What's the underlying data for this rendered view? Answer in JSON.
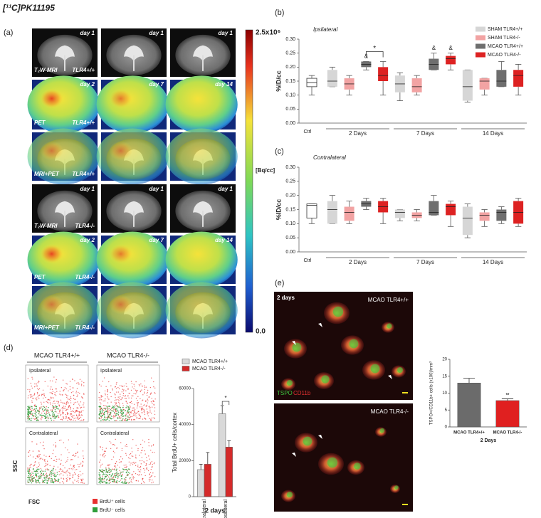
{
  "figure": {
    "title": "[¹¹C]PK11195",
    "panel_labels": [
      "(a)",
      "(b)",
      "(c)",
      "(d)",
      "(e)"
    ],
    "imaging": {
      "rows": [
        {
          "modality": "T₂W-MRI",
          "genotype": "TLR4+/+",
          "days": [
            "day 1",
            "day 1",
            "day 1"
          ]
        },
        {
          "modality": "PET",
          "genotype": "TLR4+/+",
          "days": [
            "day 2",
            "day 7",
            "day 14"
          ]
        },
        {
          "modality": "MRI+PET",
          "genotype": "TLR4+/+",
          "days": [
            null,
            null,
            null
          ]
        },
        {
          "modality": "T₂W-MRI",
          "genotype": "TLR4-/-",
          "days": [
            "day 1",
            "day 1",
            "day 1"
          ]
        },
        {
          "modality": "PET",
          "genotype": "TLR4-/-",
          "days": [
            "day 2",
            "day 7",
            "day 14"
          ]
        },
        {
          "modality": "MRI+PET",
          "genotype": "TLR4-/-",
          "days": [
            null,
            null,
            null
          ]
        }
      ],
      "colorbar": {
        "max": "2.5x10⁶",
        "unit": "[Bq/cc]",
        "min": "0.0"
      }
    },
    "flow": {
      "headers": [
        "MCAO TLR4+/+",
        "MCAO TLR4-/-"
      ],
      "regions": [
        "Ipsilateral",
        "Contralateral"
      ],
      "y_axis": "SSC",
      "x_axis": "FSC",
      "legend": [
        {
          "name": "BrdU⁺ cells",
          "color": "#e8312f"
        },
        {
          "name": "BrdU⁻ cells",
          "color": "#2f9e3a"
        }
      ]
    },
    "microscopy": {
      "time": "2 days",
      "panels": [
        "MCAO TLR4+/+",
        "MCAO TLR4-/-"
      ],
      "stains": [
        {
          "name": "TSPO",
          "color": "#3ec43e"
        },
        {
          "name": "CD11b",
          "color": "#e03030"
        }
      ]
    }
  },
  "chart_data": [
    {
      "type": "boxplot",
      "title": "Ipsilateral",
      "ylabel": "%ID/cc",
      "ylim": [
        0,
        0.3
      ],
      "yticks": [
        {
          "value": 0,
          "label": "0.00"
        },
        {
          "value": 0.05,
          "label": "0.05"
        },
        {
          "value": 0.1,
          "label": "0.10"
        },
        {
          "value": 0.15,
          "label": "0.15"
        },
        {
          "value": 0.2,
          "label": "0.20"
        },
        {
          "value": 0.25,
          "label": "0.25"
        },
        {
          "value": 0.3,
          "label": "0.30"
        }
      ],
      "control": {
        "label": "Ctrl",
        "color": "#ffffff",
        "box": {
          "min": 0.1,
          "q1": 0.13,
          "median": 0.145,
          "q3": 0.16,
          "max": 0.17
        }
      },
      "categories": [
        "2 Days",
        "7 Days",
        "14 Days"
      ],
      "series": [
        {
          "name": "SHAM TLR4+/+",
          "color": "#d6d6d6",
          "boxes": [
            {
              "min": 0.13,
              "q1": 0.13,
              "median": 0.15,
              "q3": 0.19,
              "max": 0.2
            },
            {
              "min": 0.08,
              "q1": 0.11,
              "median": 0.14,
              "q3": 0.17,
              "max": 0.18
            },
            {
              "min": 0.075,
              "q1": 0.08,
              "median": 0.13,
              "q3": 0.19,
              "max": 0.19
            }
          ]
        },
        {
          "name": "SHAM TLR4-/-",
          "color": "#f2a3a3",
          "boxes": [
            {
              "min": 0.1,
              "q1": 0.12,
              "median": 0.14,
              "q3": 0.16,
              "max": 0.17
            },
            {
              "min": 0.1,
              "q1": 0.11,
              "median": 0.13,
              "q3": 0.16,
              "max": 0.17
            },
            {
              "min": 0.1,
              "q1": 0.12,
              "median": 0.15,
              "q3": 0.16,
              "max": 0.16
            }
          ]
        },
        {
          "name": "MCAO TLR4+/+",
          "color": "#6e6e6e",
          "boxes": [
            {
              "min": 0.19,
              "q1": 0.2,
              "median": 0.21,
              "q3": 0.22,
              "max": 0.22
            },
            {
              "min": 0.19,
              "q1": 0.19,
              "median": 0.21,
              "q3": 0.23,
              "max": 0.25
            },
            {
              "min": 0.13,
              "q1": 0.13,
              "median": 0.15,
              "q3": 0.19,
              "max": 0.22
            }
          ]
        },
        {
          "name": "MCAO TLR4-/-",
          "color": "#dd2222",
          "boxes": [
            {
              "min": 0.1,
              "q1": 0.15,
              "median": 0.17,
              "q3": 0.2,
              "max": 0.22
            },
            {
              "min": 0.19,
              "q1": 0.21,
              "median": 0.23,
              "q3": 0.24,
              "max": 0.25
            },
            {
              "min": 0.1,
              "q1": 0.13,
              "median": 0.17,
              "q3": 0.19,
              "max": 0.21
            }
          ]
        }
      ],
      "annotations": [
        {
          "text": "&",
          "category": 0,
          "series": 2
        },
        {
          "text": "&",
          "category": 1,
          "series": 2
        },
        {
          "text": "&",
          "category": 1,
          "series": 3
        }
      ],
      "significance": [
        {
          "text": "*",
          "category": 0,
          "series": [
            2,
            3
          ]
        }
      ]
    },
    {
      "type": "boxplot",
      "title": "Contralateral",
      "ylabel": "%ID/cc",
      "ylim": [
        0,
        0.3
      ],
      "yticks": [
        {
          "value": 0,
          "label": "0.00"
        },
        {
          "value": 0.05,
          "label": "0.05"
        },
        {
          "value": 0.1,
          "label": "0.10"
        },
        {
          "value": 0.15,
          "label": "0.15"
        },
        {
          "value": 0.2,
          "label": "0.20"
        },
        {
          "value": 0.25,
          "label": "0.25"
        },
        {
          "value": 0.3,
          "label": "0.30"
        }
      ],
      "control": {
        "label": "Ctrl",
        "color": "#ffffff",
        "box": {
          "min": 0.1,
          "q1": 0.12,
          "median": 0.165,
          "q3": 0.17,
          "max": 0.17
        }
      },
      "categories": [
        "2 Days",
        "7 Days",
        "14 Days"
      ],
      "series": [
        {
          "color": "#d6d6d6",
          "boxes": [
            {
              "min": 0.1,
              "q1": 0.1,
              "median": 0.15,
              "q3": 0.18,
              "max": 0.2
            },
            {
              "min": 0.11,
              "q1": 0.12,
              "median": 0.14,
              "q3": 0.15,
              "max": 0.15
            },
            {
              "min": 0.05,
              "q1": 0.06,
              "median": 0.12,
              "q3": 0.16,
              "max": 0.17
            }
          ]
        },
        {
          "color": "#f2a3a3",
          "boxes": [
            {
              "min": 0.1,
              "q1": 0.11,
              "median": 0.14,
              "q3": 0.16,
              "max": 0.18
            },
            {
              "min": 0.11,
              "q1": 0.12,
              "median": 0.13,
              "q3": 0.14,
              "max": 0.15
            },
            {
              "min": 0.09,
              "q1": 0.11,
              "median": 0.13,
              "q3": 0.14,
              "max": 0.15
            }
          ]
        },
        {
          "color": "#6e6e6e",
          "boxes": [
            {
              "min": 0.15,
              "q1": 0.16,
              "median": 0.17,
              "q3": 0.18,
              "max": 0.19
            },
            {
              "min": 0.13,
              "q1": 0.13,
              "median": 0.14,
              "q3": 0.18,
              "max": 0.2
            },
            {
              "min": 0.1,
              "q1": 0.11,
              "median": 0.14,
              "q3": 0.15,
              "max": 0.16
            }
          ]
        },
        {
          "color": "#dd2222",
          "boxes": [
            {
              "min": 0.1,
              "q1": 0.14,
              "median": 0.16,
              "q3": 0.18,
              "max": 0.19
            },
            {
              "min": 0.09,
              "q1": 0.13,
              "median": 0.16,
              "q3": 0.17,
              "max": 0.18
            },
            {
              "min": 0.09,
              "q1": 0.1,
              "median": 0.14,
              "q3": 0.18,
              "max": 0.19
            }
          ]
        }
      ]
    },
    {
      "type": "bar",
      "ylabel": "Total BrdU+ cells/cortex",
      "xlabel": "2 days",
      "categories": [
        "Contralateral",
        "Ipsilateral"
      ],
      "ylim": [
        0,
        60000
      ],
      "yticks": [
        0,
        20000,
        40000,
        60000
      ],
      "series": [
        {
          "name": "MCAO TLR4+/+",
          "color": "#d9d9d9",
          "values": [
            15000,
            46000
          ],
          "errors": [
            3000,
            4500
          ]
        },
        {
          "name": "MCAO TLR4-/-",
          "color": "#d42a2a",
          "values": [
            18000,
            27500
          ],
          "errors": [
            6500,
            3500
          ]
        }
      ],
      "significance": [
        {
          "text": "*",
          "category": 1
        }
      ]
    },
    {
      "type": "bar",
      "ylabel": "TSPO+/CD11b+ cells (x100)/mm²",
      "xlabel": "2 Days",
      "categories": [
        "MCAO TLR4+/+",
        "MCAO TLR4-/-"
      ],
      "ylim": [
        0,
        20
      ],
      "yticks": [
        0,
        5,
        10,
        15,
        20
      ],
      "series": [
        {
          "colors": [
            "#6b6b6b",
            "#e02020"
          ],
          "values": [
            13,
            7.8
          ],
          "errors": [
            1.4,
            0.5
          ]
        }
      ],
      "annotations": [
        {
          "text": "**",
          "category": 1
        }
      ]
    }
  ]
}
